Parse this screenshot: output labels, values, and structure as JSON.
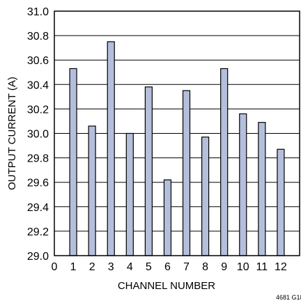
{
  "chart_data": {
    "type": "bar",
    "categories": [
      "1",
      "2",
      "3",
      "4",
      "5",
      "6",
      "7",
      "8",
      "9",
      "10",
      "11",
      "12"
    ],
    "values": [
      30.53,
      30.06,
      30.75,
      30.0,
      30.38,
      29.62,
      30.35,
      29.97,
      30.53,
      30.16,
      30.09,
      29.87
    ],
    "x_ticks": [
      "0",
      "1",
      "2",
      "3",
      "4",
      "5",
      "6",
      "7",
      "8",
      "9",
      "10",
      "11",
      "12"
    ],
    "y_ticks": [
      "29.0",
      "29.2",
      "29.4",
      "29.6",
      "29.8",
      "30.0",
      "30.2",
      "30.4",
      "30.6",
      "30.8",
      "31.0"
    ],
    "xlabel": "CHANNEL NUMBER",
    "ylabel": "OUTPUT CURRENT (A)",
    "xlim": [
      0,
      13
    ],
    "ylim": [
      29.0,
      31.0
    ],
    "grid": true,
    "bar_color": "#b4bfdc",
    "figure_code": "4681 G18"
  }
}
